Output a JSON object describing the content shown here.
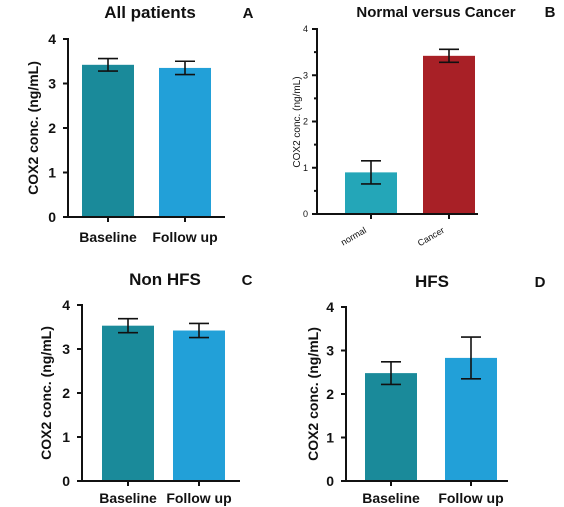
{
  "chart_data": [
    {
      "panel": "A",
      "type": "bar",
      "title": "All patients",
      "ylabel": "COX2 conc. (ng/mL)",
      "xlabel": "",
      "ylim": [
        0,
        4
      ],
      "yticks": [
        "0",
        "1",
        "2",
        "3",
        "4"
      ],
      "categories": [
        "Baseline",
        "Follow up"
      ],
      "values": [
        3.42,
        3.35
      ],
      "errors": [
        0.14,
        0.15
      ],
      "colors": [
        "#1a8a9a",
        "#22a0d8"
      ],
      "grid": false
    },
    {
      "panel": "B",
      "type": "bar",
      "title": "Normal versus Cancer",
      "ylabel": "COX2 conc. (ng/mL)",
      "xlabel": "",
      "ylim": [
        0,
        4
      ],
      "yticks": [
        "0",
        "1",
        "2",
        "3",
        "4"
      ],
      "categories": [
        "normal",
        "Cancer"
      ],
      "values": [
        0.9,
        3.42
      ],
      "errors": [
        0.25,
        0.14
      ],
      "colors": [
        "#24a6b8",
        "#a82026"
      ],
      "grid": false
    },
    {
      "panel": "C",
      "type": "bar",
      "title": "Non HFS",
      "ylabel": "COX2 conc. (ng/mL)",
      "xlabel": "",
      "ylim": [
        0,
        4
      ],
      "yticks": [
        "0",
        "1",
        "2",
        "3",
        "4"
      ],
      "categories": [
        "Baseline",
        "Follow up"
      ],
      "values": [
        3.53,
        3.42
      ],
      "errors": [
        0.16,
        0.16
      ],
      "colors": [
        "#1a8a9a",
        "#22a0d8"
      ],
      "grid": false
    },
    {
      "panel": "D",
      "type": "bar",
      "title": "HFS",
      "ylabel": "COX2 conc. (ng/mL)",
      "xlabel": "",
      "ylim": [
        0,
        4
      ],
      "yticks": [
        "0",
        "1",
        "2",
        "3",
        "4"
      ],
      "categories": [
        "Baseline",
        "Follow up"
      ],
      "values": [
        2.48,
        2.83
      ],
      "errors": [
        0.26,
        0.48
      ],
      "colors": [
        "#1a8a9a",
        "#22a0d8"
      ],
      "grid": false
    }
  ]
}
